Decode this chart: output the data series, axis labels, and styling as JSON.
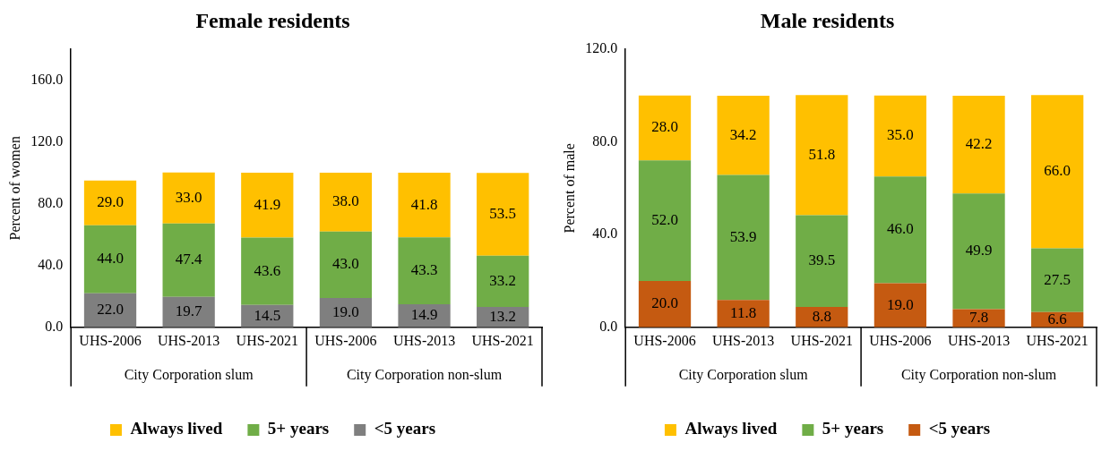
{
  "chart_data": [
    {
      "type": "bar",
      "title": "Female residents",
      "ylabel": "Percent of women",
      "stacked": true,
      "categories": [
        "UHS-2006",
        "UHS-2013",
        "UHS-2021",
        "UHS-2006",
        "UHS-2013",
        "UHS-2021"
      ],
      "series": [
        {
          "name": "<5 years",
          "color": "#7f7f7f",
          "values": [
            22.0,
            19.7,
            14.5,
            19.0,
            14.9,
            13.2
          ],
          "value_labels": [
            "22.0",
            "19.7",
            "14.5",
            "19.0",
            "14.9",
            "13.2"
          ]
        },
        {
          "name": "5+ years",
          "color": "#70ad47",
          "values": [
            44.0,
            47.4,
            43.6,
            43.0,
            43.3,
            33.2
          ],
          "value_labels": [
            "44.0",
            "47.4",
            "43.6",
            "43.0",
            "43.3",
            "33.2"
          ]
        },
        {
          "name": "Always lived",
          "color": "#ffc000",
          "values": [
            29.0,
            33.0,
            41.9,
            38.0,
            41.8,
            53.5
          ],
          "value_labels": [
            "29.0",
            "33.0",
            "41.9",
            "38.0",
            "41.8",
            "53.5"
          ]
        }
      ],
      "ylim": [
        0,
        180
      ],
      "yticks": [
        {
          "value": 0,
          "label": "0.0"
        },
        {
          "value": 40,
          "label": "40.0"
        },
        {
          "value": 80,
          "label": "80.0"
        },
        {
          "value": 120,
          "label": "120.0"
        },
        {
          "value": 160,
          "label": "160.0"
        }
      ],
      "grid": false,
      "legend": "bottom",
      "annotations": [
        "City Corporation slum",
        "City Corporation non-slum"
      ]
    },
    {
      "type": "bar",
      "title": "Male residents",
      "ylabel": "Percent of male",
      "stacked": true,
      "categories": [
        "UHS-2006",
        "UHS-2013",
        "UHS-2021",
        "UHS-2006",
        "UHS-2013",
        "UHS-2021"
      ],
      "series": [
        {
          "name": "<5 years",
          "color": "#c55a11",
          "values": [
            20.0,
            11.8,
            8.8,
            19.0,
            7.8,
            6.6
          ],
          "value_labels": [
            "20.0",
            "11.8",
            "8.8",
            "19.0",
            "7.8",
            "6.6"
          ]
        },
        {
          "name": "5+ years",
          "color": "#70ad47",
          "values": [
            52.0,
            53.9,
            39.5,
            46.0,
            49.9,
            27.5
          ],
          "value_labels": [
            "52.0",
            "53.9",
            "39.5",
            "46.0",
            "49.9",
            "27.5"
          ]
        },
        {
          "name": "Always lived",
          "color": "#ffc000",
          "values": [
            28.0,
            34.2,
            51.8,
            35.0,
            42.2,
            66.0
          ],
          "value_labels": [
            "28.0",
            "34.2",
            "51.8",
            "35.0",
            "42.2",
            "66.0"
          ]
        }
      ],
      "ylim": [
        0,
        120
      ],
      "yticks": [
        {
          "value": 0,
          "label": "0.0"
        },
        {
          "value": 40,
          "label": "40.0"
        },
        {
          "value": 80,
          "label": "80.0"
        },
        {
          "value": 120,
          "label": "120.0"
        }
      ],
      "grid": false,
      "legend": "bottom",
      "annotations": [
        "City Corporation slum",
        "City Corporation non-slum"
      ]
    }
  ]
}
